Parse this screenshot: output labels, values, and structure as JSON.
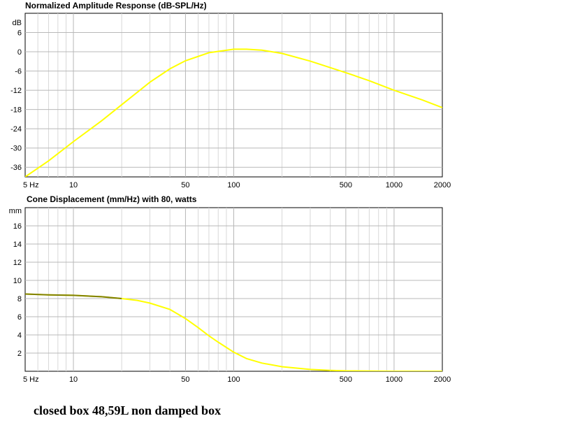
{
  "caption": "closed box 48,59L non damped box",
  "chart_data": [
    {
      "type": "line",
      "title": "Normalized Amplitude Response (dB-SPL/Hz)",
      "y_unit_label": "dB",
      "x_scale": "log",
      "xlim": [
        5,
        2000
      ],
      "ylim": [
        -39,
        12
      ],
      "x_tick_labels": [
        {
          "v": 5,
          "label": "5 Hz"
        },
        {
          "v": 10,
          "label": "10"
        },
        {
          "v": 50,
          "label": "50"
        },
        {
          "v": 100,
          "label": "100"
        },
        {
          "v": 500,
          "label": "500"
        },
        {
          "v": 1000,
          "label": "1000"
        },
        {
          "v": 2000,
          "label": "2000"
        }
      ],
      "y_ticks": [
        6,
        0,
        -6,
        -12,
        -18,
        -24,
        -30,
        -36
      ],
      "grid": true,
      "line_color": "#ffff00",
      "series": [
        {
          "x": [
            5,
            7,
            10,
            15,
            20,
            30,
            40,
            50,
            70,
            100,
            120,
            150,
            200,
            300,
            500,
            700,
            1000,
            1500,
            2000
          ],
          "y": [
            -39,
            -34,
            -28,
            -21.5,
            -16.5,
            -9.5,
            -5.3,
            -2.8,
            -0.3,
            0.8,
            0.8,
            0.5,
            -0.5,
            -2.9,
            -6.5,
            -9,
            -12,
            -15,
            -17.4
          ]
        }
      ]
    },
    {
      "type": "line",
      "title": "Cone Displacement (mm/Hz) with 80, watts",
      "y_unit_label": "mm",
      "x_scale": "log",
      "xlim": [
        5,
        2000
      ],
      "ylim": [
        0,
        18
      ],
      "x_tick_labels": [
        {
          "v": 5,
          "label": "5 Hz"
        },
        {
          "v": 10,
          "label": "10"
        },
        {
          "v": 50,
          "label": "50"
        },
        {
          "v": 100,
          "label": "100"
        },
        {
          "v": 500,
          "label": "500"
        },
        {
          "v": 1000,
          "label": "1000"
        },
        {
          "v": 2000,
          "label": "2000"
        }
      ],
      "y_ticks": [
        16,
        14,
        12,
        10,
        8,
        6,
        4,
        2
      ],
      "grid": true,
      "line_color": "#ffff00",
      "low_segment_color": "#808000",
      "low_segment_end_x": 20,
      "series": [
        {
          "x": [
            5,
            7,
            10,
            15,
            20,
            25,
            30,
            40,
            50,
            60,
            70,
            80,
            100,
            120,
            150,
            200,
            300,
            400,
            500,
            1000,
            2000
          ],
          "y": [
            8.5,
            8.4,
            8.35,
            8.2,
            8.0,
            7.8,
            7.5,
            6.8,
            5.8,
            4.8,
            3.9,
            3.2,
            2.1,
            1.4,
            0.9,
            0.5,
            0.2,
            0.1,
            0.05,
            0.0,
            0.0
          ]
        }
      ]
    }
  ]
}
